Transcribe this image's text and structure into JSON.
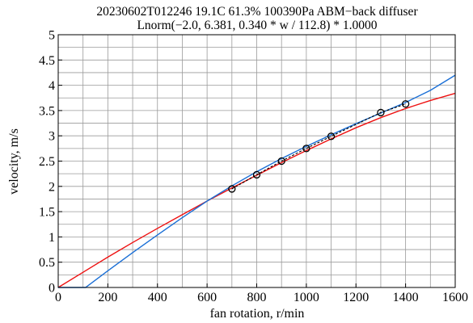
{
  "chart_data": {
    "type": "line",
    "title": "20230602T012246 19.1C 61.3% 100390Pa ABM−back diffuser",
    "subtitle": "Lnorm(−2.0, 6.381, 0.340 * w / 112.8) * 1.0000",
    "xlabel": "fan rotation, r/min",
    "ylabel": "velocity, m/s",
    "xlim": [
      0,
      1600
    ],
    "ylim": [
      0,
      5
    ],
    "xticks": [
      0,
      200,
      400,
      600,
      800,
      1000,
      1200,
      1400,
      1600
    ],
    "xtick_labels": [
      "0",
      "200",
      "400",
      "600",
      "800",
      "1000",
      "1200",
      "1400",
      "1600"
    ],
    "yticks": [
      0,
      0.5,
      1,
      1.5,
      2,
      2.5,
      3,
      3.5,
      4,
      4.5,
      5
    ],
    "ytick_labels": [
      "0",
      "0.5",
      "1",
      "1.5",
      "2",
      "2.5",
      "3",
      "3.5",
      "4",
      "4.5",
      "5"
    ],
    "grid": true,
    "series": [
      {
        "style": "markers-dashed",
        "color": "#000000",
        "x": [
          700,
          800,
          900,
          1000,
          1100,
          1300,
          1400
        ],
        "y": [
          1.95,
          2.23,
          2.5,
          2.75,
          2.99,
          3.46,
          3.63
        ]
      },
      {
        "style": "line",
        "color": "#ee1111",
        "x": [
          0,
          100,
          200,
          300,
          400,
          500,
          600,
          700,
          800,
          900,
          1000,
          1100,
          1200,
          1300,
          1400,
          1500,
          1600
        ],
        "y": [
          0.0,
          0.3,
          0.6,
          0.89,
          1.17,
          1.44,
          1.71,
          1.97,
          2.22,
          2.47,
          2.71,
          2.94,
          3.16,
          3.36,
          3.54,
          3.7,
          3.84
        ]
      },
      {
        "style": "line",
        "color": "#1a6fd6",
        "x": [
          0,
          110,
          200,
          300,
          400,
          500,
          600,
          700,
          800,
          900,
          1000,
          1100,
          1200,
          1300,
          1400,
          1500,
          1600
        ],
        "y": [
          0.0,
          0.0,
          0.33,
          0.69,
          1.04,
          1.38,
          1.71,
          2.01,
          2.29,
          2.55,
          2.79,
          3.02,
          3.24,
          3.45,
          3.66,
          3.9,
          4.2
        ]
      }
    ]
  }
}
